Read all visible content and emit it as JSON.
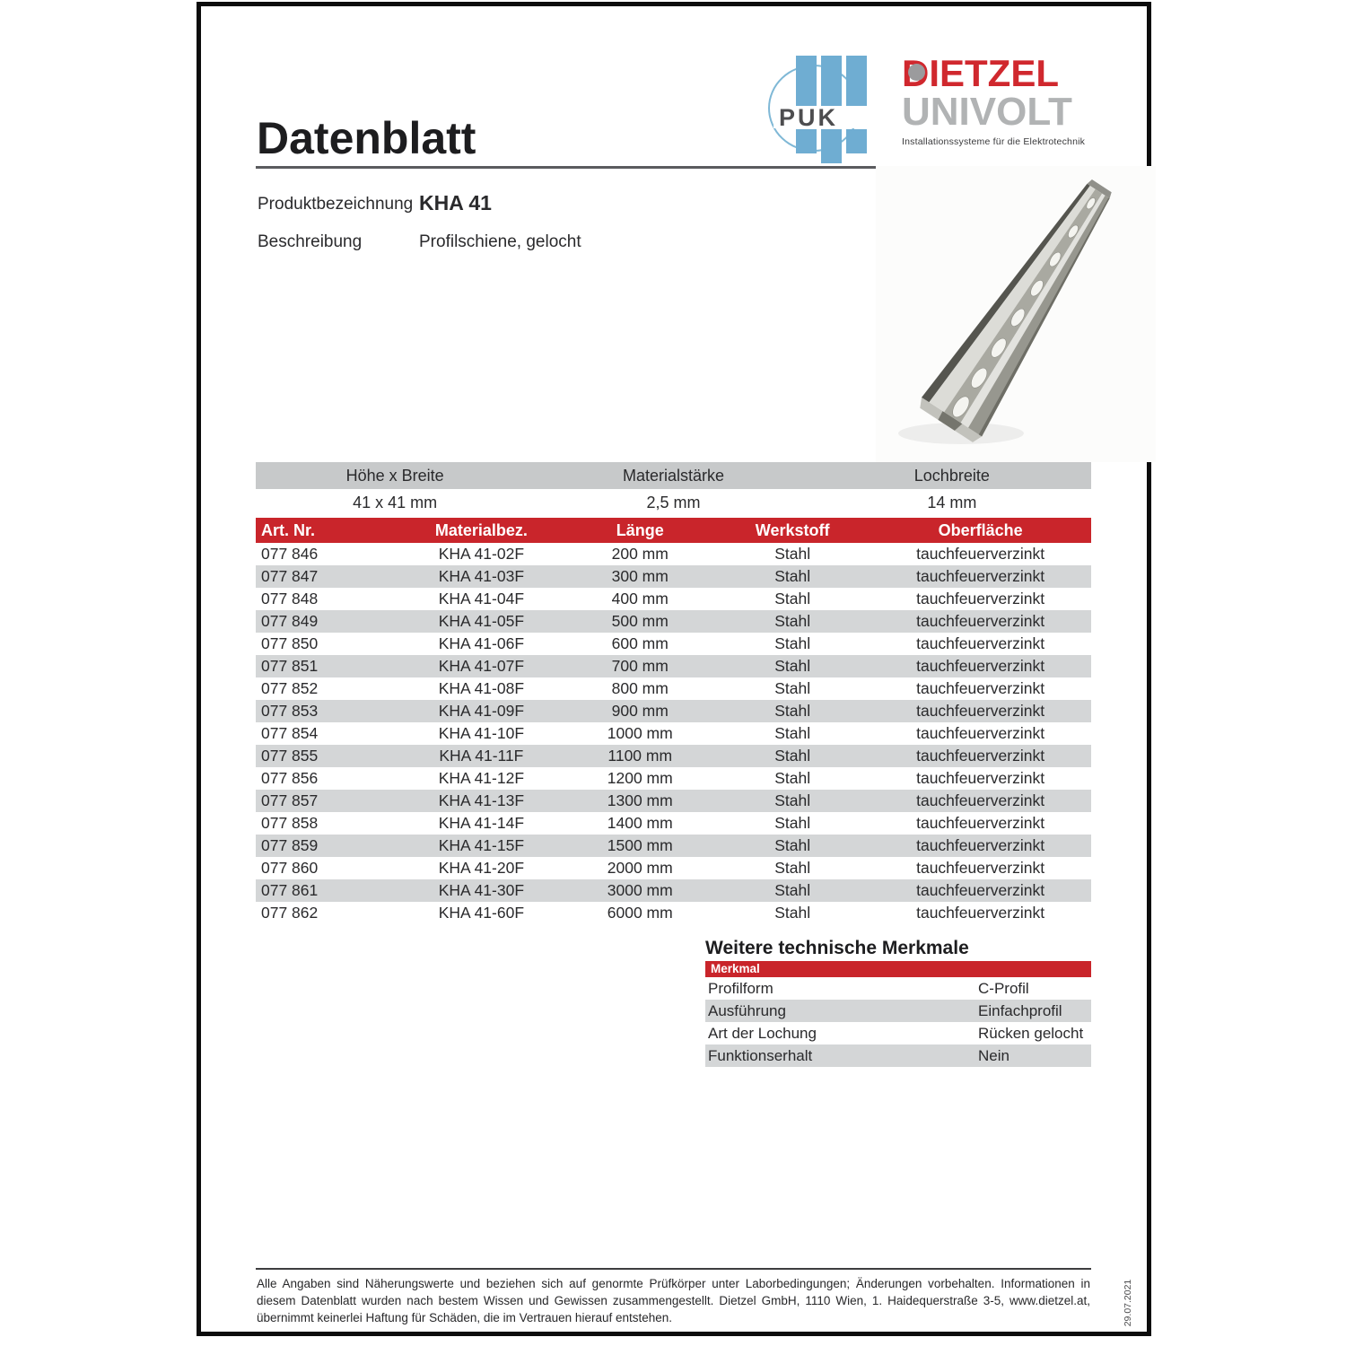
{
  "doc": {
    "title": "Datenblatt",
    "product_label": "Produktbezeichnung",
    "product_value": "KHA 41",
    "description_label": "Beschreibung",
    "description_value": "Profilschiene, gelocht",
    "date": "29.07.2021"
  },
  "logos": {
    "puk_text": "PUK",
    "brand_line1": "DIETZEL",
    "brand_line2": "UNIVOLT",
    "tagline": "Installationssysteme für die Elektrotechnik"
  },
  "summary": {
    "columns": [
      "Höhe x Breite",
      "Materialstärke",
      "Lochbreite"
    ],
    "values": [
      "41 x 41 mm",
      "2,5 mm",
      "14 mm"
    ]
  },
  "table": {
    "headers": [
      "Art. Nr.",
      "Materialbez.",
      "Länge",
      "Werkstoff",
      "Oberfläche"
    ],
    "rows": [
      [
        "077 846",
        "KHA 41-02F",
        "200 mm",
        "Stahl",
        "tauchfeuerverzinkt"
      ],
      [
        "077 847",
        "KHA 41-03F",
        "300 mm",
        "Stahl",
        "tauchfeuerverzinkt"
      ],
      [
        "077 848",
        "KHA 41-04F",
        "400 mm",
        "Stahl",
        "tauchfeuerverzinkt"
      ],
      [
        "077 849",
        "KHA 41-05F",
        "500 mm",
        "Stahl",
        "tauchfeuerverzinkt"
      ],
      [
        "077 850",
        "KHA 41-06F",
        "600 mm",
        "Stahl",
        "tauchfeuerverzinkt"
      ],
      [
        "077 851",
        "KHA 41-07F",
        "700 mm",
        "Stahl",
        "tauchfeuerverzinkt"
      ],
      [
        "077 852",
        "KHA 41-08F",
        "800 mm",
        "Stahl",
        "tauchfeuerverzinkt"
      ],
      [
        "077 853",
        "KHA 41-09F",
        "900 mm",
        "Stahl",
        "tauchfeuerverzinkt"
      ],
      [
        "077 854",
        "KHA 41-10F",
        "1000 mm",
        "Stahl",
        "tauchfeuerverzinkt"
      ],
      [
        "077 855",
        "KHA 41-11F",
        "1100 mm",
        "Stahl",
        "tauchfeuerverzinkt"
      ],
      [
        "077 856",
        "KHA 41-12F",
        "1200 mm",
        "Stahl",
        "tauchfeuerverzinkt"
      ],
      [
        "077 857",
        "KHA 41-13F",
        "1300 mm",
        "Stahl",
        "tauchfeuerverzinkt"
      ],
      [
        "077 858",
        "KHA 41-14F",
        "1400 mm",
        "Stahl",
        "tauchfeuerverzinkt"
      ],
      [
        "077 859",
        "KHA 41-15F",
        "1500 mm",
        "Stahl",
        "tauchfeuerverzinkt"
      ],
      [
        "077 860",
        "KHA 41-20F",
        "2000 mm",
        "Stahl",
        "tauchfeuerverzinkt"
      ],
      [
        "077 861",
        "KHA 41-30F",
        "3000 mm",
        "Stahl",
        "tauchfeuerverzinkt"
      ],
      [
        "077 862",
        "KHA 41-60F",
        "6000 mm",
        "Stahl",
        "tauchfeuerverzinkt"
      ]
    ]
  },
  "merkmale": {
    "title": "Weitere technische Merkmale",
    "header": "Merkmal",
    "rows": [
      [
        "Profilform",
        "C-Profil"
      ],
      [
        "Ausführung",
        "Einfachprofil"
      ],
      [
        "Art der Lochung",
        "Rücken gelocht"
      ],
      [
        "Funktionserhalt",
        "Nein"
      ]
    ]
  },
  "footer": {
    "disclaimer": "Alle Angaben sind Näherungswerte und beziehen sich auf genormte Prüfkörper unter Laborbedingungen; Änderungen vorbehalten. Informationen in diesem Datenblatt wurden nach bestem Wissen und Gewissen zusammengestellt. Dietzel GmbH, 1110 Wien, 1. Haidequerstraße 3-5, www.dietzel.at, übernimmt keinerlei Haftung für Schäden, die im Vertrauen hierauf entstehen."
  },
  "colors": {
    "accent_red": "#c9252b",
    "row_alt_gray": "#d4d6d7",
    "summary_band_gray": "#c7c9ca",
    "puk_blue": "#6fadd2",
    "brand_red": "#d0282e",
    "brand_gray": "#b1b3b4"
  }
}
